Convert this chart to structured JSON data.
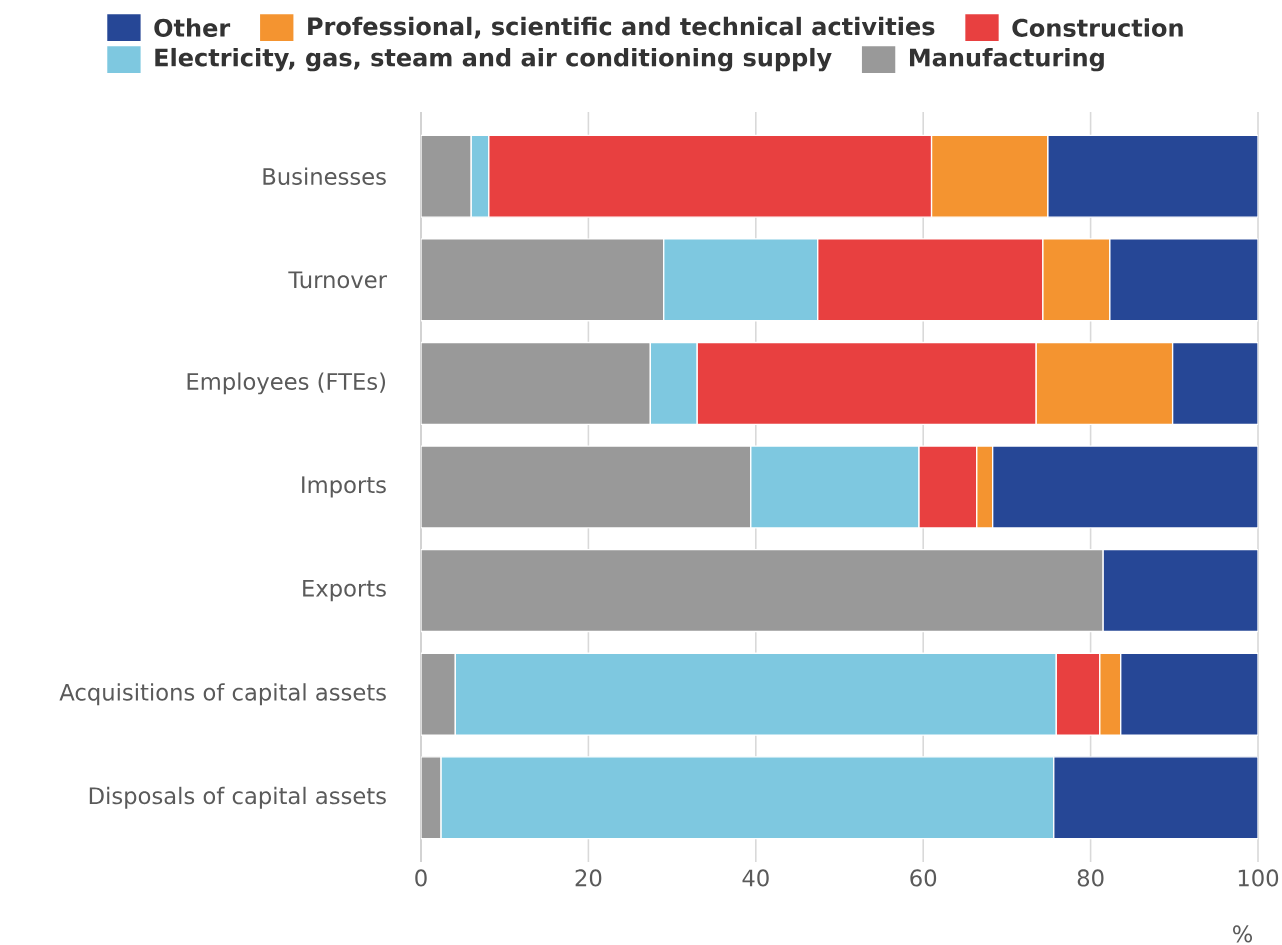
{
  "chart_data": {
    "type": "bar",
    "orientation": "horizontal",
    "stacked": true,
    "categories": [
      "Businesses",
      "Turnover",
      "Employees (FTEs)",
      "Imports",
      "Exports",
      "Acquisitions of capital assets",
      "Disposals of capital assets"
    ],
    "series": [
      {
        "name": "Manufacturing",
        "color": "#999999",
        "values": [
          6.0,
          29.0,
          27.4,
          39.4,
          81.5,
          4.1,
          2.4
        ]
      },
      {
        "name": "Electricity, gas, steam and air conditioning supply",
        "color": "#7ec8e0",
        "values": [
          2.1,
          18.4,
          5.6,
          20.1,
          null,
          71.8,
          73.2
        ]
      },
      {
        "name": "Construction",
        "color": "#e84040",
        "values": [
          52.9,
          26.9,
          40.5,
          6.9,
          null,
          5.2,
          null
        ]
      },
      {
        "name": "Professional, scientific and technical activities",
        "color": "#f49430",
        "values": [
          13.9,
          8.0,
          16.3,
          1.9,
          null,
          2.5,
          null
        ]
      },
      {
        "name": "Other",
        "color": "#264796",
        "values": [
          25.1,
          17.7,
          10.2,
          31.7,
          18.5,
          16.4,
          24.4
        ]
      }
    ],
    "xlabel": "%",
    "xlim": [
      0,
      100
    ],
    "xticks": [
      0,
      20,
      40,
      60,
      80,
      100
    ],
    "grid": "x",
    "legend": "top"
  }
}
